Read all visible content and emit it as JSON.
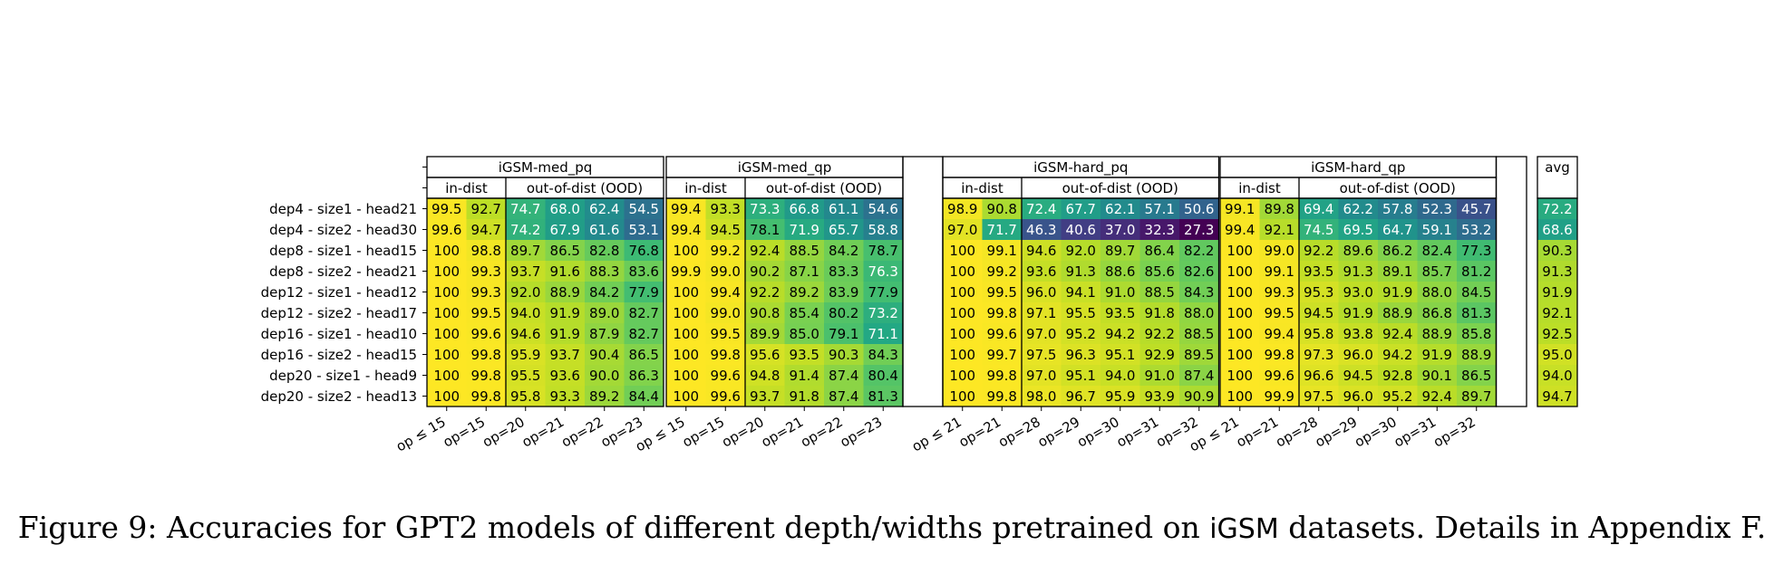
{
  "chart_data": {
    "type": "heatmap",
    "colormap": "viridis",
    "row_labels": [
      "dep4 - size1 - head21",
      "dep4 - size2 - head30",
      "dep8 - size1 - head15",
      "dep8 - size2 - head21",
      "dep12 - size1 - head12",
      "dep12 - size2 - head17",
      "dep16 - size1 - head10",
      "dep16 - size2 - head15",
      "dep20 - size1 - head9",
      "dep20 - size2 - head13"
    ],
    "groups": [
      {
        "title": "iGSM-med_pq",
        "sub_headers": [
          "in-dist",
          "out-of-dist (OOD)"
        ],
        "columns": [
          "op ≤ 15",
          "op=15",
          "op=20",
          "op=21",
          "op=22",
          "op=23"
        ],
        "values": [
          [
            99.5,
            92.7,
            74.7,
            68.0,
            62.4,
            54.5
          ],
          [
            99.6,
            94.7,
            74.2,
            67.9,
            61.6,
            53.1
          ],
          [
            100,
            98.8,
            89.7,
            86.5,
            82.8,
            76.8
          ],
          [
            100,
            99.3,
            93.7,
            91.6,
            88.3,
            83.6
          ],
          [
            100,
            99.3,
            92.0,
            88.9,
            84.2,
            77.9
          ],
          [
            100,
            99.5,
            94.0,
            91.9,
            89.0,
            82.7
          ],
          [
            100,
            99.6,
            94.6,
            91.9,
            87.9,
            82.7
          ],
          [
            100,
            99.8,
            95.9,
            93.7,
            90.4,
            86.5
          ],
          [
            100,
            99.8,
            95.5,
            93.6,
            90.0,
            86.3
          ],
          [
            100,
            99.8,
            95.8,
            93.3,
            89.2,
            84.4
          ]
        ]
      },
      {
        "title": "iGSM-med_qp",
        "sub_headers": [
          "in-dist",
          "out-of-dist (OOD)"
        ],
        "columns": [
          "op ≤ 15",
          "op=15",
          "op=20",
          "op=21",
          "op=22",
          "op=23"
        ],
        "values": [
          [
            99.4,
            93.3,
            73.3,
            66.8,
            61.1,
            54.6
          ],
          [
            99.4,
            94.5,
            78.1,
            71.9,
            65.7,
            58.8
          ],
          [
            100,
            99.2,
            92.4,
            88.5,
            84.2,
            78.7
          ],
          [
            99.9,
            99.0,
            90.2,
            87.1,
            83.3,
            76.3
          ],
          [
            100,
            99.4,
            92.2,
            89.2,
            83.9,
            77.9
          ],
          [
            100,
            99.0,
            90.8,
            85.4,
            80.2,
            73.2
          ],
          [
            100,
            99.5,
            89.9,
            85.0,
            79.1,
            71.1
          ],
          [
            100,
            99.8,
            95.6,
            93.5,
            90.3,
            84.3
          ],
          [
            100,
            99.6,
            94.8,
            91.4,
            87.4,
            80.4
          ],
          [
            100,
            99.6,
            93.7,
            91.8,
            87.4,
            81.3
          ]
        ]
      },
      {
        "title": "iGSM-hard_pq",
        "sub_headers": [
          "in-dist",
          "out-of-dist (OOD)"
        ],
        "columns": [
          "op ≤ 21",
          "op=21",
          "op=28",
          "op=29",
          "op=30",
          "op=31",
          "op=32"
        ],
        "values": [
          [
            98.9,
            90.8,
            72.4,
            67.7,
            62.1,
            57.1,
            50.6
          ],
          [
            97.0,
            71.7,
            46.3,
            40.6,
            37.0,
            32.3,
            27.3
          ],
          [
            100,
            99.1,
            94.6,
            92.0,
            89.7,
            86.4,
            82.2
          ],
          [
            100,
            99.2,
            93.6,
            91.3,
            88.6,
            85.6,
            82.6
          ],
          [
            100,
            99.5,
            96.0,
            94.1,
            91.0,
            88.5,
            84.3
          ],
          [
            100,
            99.8,
            97.1,
            95.5,
            93.5,
            91.8,
            88.0
          ],
          [
            100,
            99.6,
            97.0,
            95.2,
            94.2,
            92.2,
            88.5
          ],
          [
            100,
            99.7,
            97.5,
            96.3,
            95.1,
            92.9,
            89.5
          ],
          [
            100,
            99.8,
            97.0,
            95.1,
            94.0,
            91.0,
            87.4
          ],
          [
            100,
            99.8,
            98.0,
            96.7,
            95.9,
            93.9,
            90.9
          ]
        ]
      },
      {
        "title": "iGSM-hard_qp",
        "sub_headers": [
          "in-dist",
          "out-of-dist (OOD)"
        ],
        "columns": [
          "op ≤ 21",
          "op=21",
          "op=28",
          "op=29",
          "op=30",
          "op=31",
          "op=32"
        ],
        "values": [
          [
            99.1,
            89.8,
            69.4,
            62.2,
            57.8,
            52.3,
            45.7
          ],
          [
            99.4,
            92.1,
            74.5,
            69.5,
            64.7,
            59.1,
            53.2
          ],
          [
            100,
            99.0,
            92.2,
            89.6,
            86.2,
            82.4,
            77.3
          ],
          [
            100,
            99.1,
            93.5,
            91.3,
            89.1,
            85.7,
            81.2
          ],
          [
            100,
            99.3,
            95.3,
            93.0,
            91.9,
            88.0,
            84.5
          ],
          [
            100,
            99.5,
            94.5,
            91.9,
            88.9,
            86.8,
            81.3
          ],
          [
            100,
            99.4,
            95.8,
            93.8,
            92.4,
            88.9,
            85.8
          ],
          [
            100,
            99.8,
            97.3,
            96.0,
            94.2,
            91.9,
            88.9
          ],
          [
            100,
            99.6,
            96.6,
            94.5,
            92.8,
            90.1,
            86.5
          ],
          [
            100,
            99.9,
            97.5,
            96.0,
            95.2,
            92.4,
            89.7
          ]
        ]
      }
    ],
    "avg": {
      "title": "avg",
      "values": [
        72.2,
        68.6,
        90.3,
        91.3,
        91.9,
        92.1,
        92.5,
        95.0,
        94.0,
        94.7
      ]
    }
  },
  "caption": {
    "prefix": "Figure 9:  Accuracies for GPT2 models of different depth/widths pretrained on ",
    "dataset": "iGSM",
    "suffix": " datasets.  Details in Appendix F."
  }
}
